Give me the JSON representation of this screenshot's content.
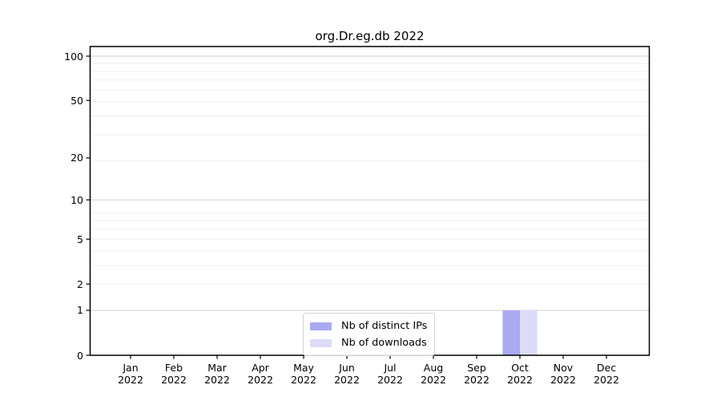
{
  "chart_data": {
    "type": "bar",
    "title": "org.Dr.eg.db 2022",
    "categories": [
      "Jan 2022",
      "Feb 2022",
      "Mar 2022",
      "Apr 2022",
      "May 2022",
      "Jun 2022",
      "Jul 2022",
      "Aug 2022",
      "Sep 2022",
      "Oct 2022",
      "Nov 2022",
      "Dec 2022"
    ],
    "series": [
      {
        "name": "Nb of distinct IPs",
        "color": "#aaaaf2",
        "values": [
          0,
          0,
          0,
          0,
          0,
          0,
          0,
          0,
          0,
          1,
          0,
          0
        ]
      },
      {
        "name": "Nb of downloads",
        "color": "#dcdcf8",
        "values": [
          0,
          0,
          0,
          0,
          0,
          0,
          0,
          0,
          0,
          1,
          0,
          0
        ]
      }
    ],
    "xlabel": "",
    "ylabel": "",
    "y_scale": "log1p",
    "y_ticks": [
      0,
      1,
      2,
      5,
      10,
      20,
      50,
      100
    ],
    "ylim": [
      0,
      100
    ],
    "grid": "horizontal",
    "legend_position": "bottom-center-inside",
    "colors": {
      "grid_major": "#d2d2d2",
      "grid_minor": "#efefef",
      "axis": "#000000",
      "background": "#ffffff"
    }
  }
}
